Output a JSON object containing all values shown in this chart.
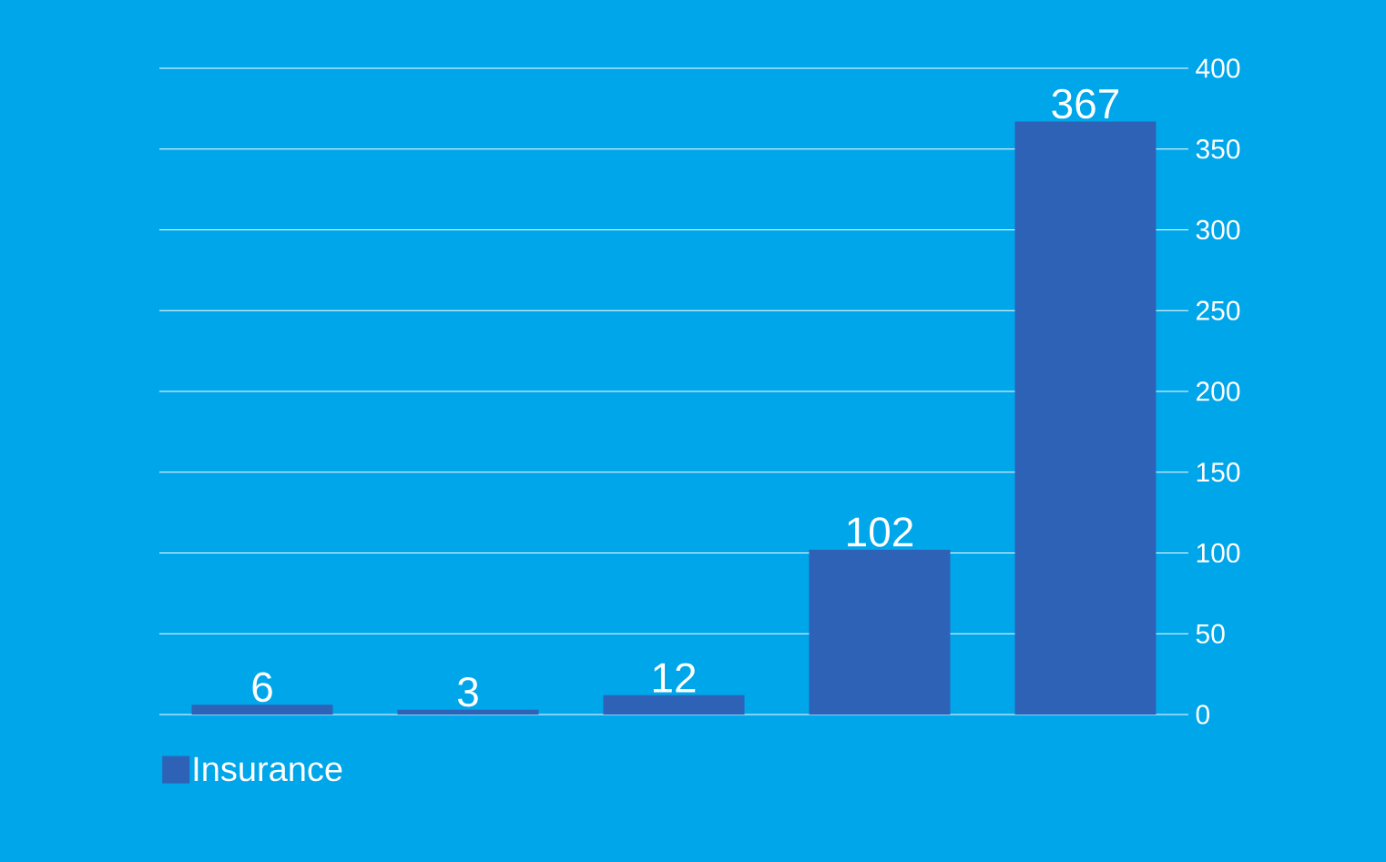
{
  "chart_data": {
    "type": "bar",
    "categories": [
      null,
      null,
      null,
      null,
      null
    ],
    "series": [
      {
        "name": "Insurance",
        "color": "#2e62b6",
        "values": [
          6,
          3,
          12,
          102,
          367
        ]
      }
    ],
    "ylim": [
      0,
      400
    ],
    "yticks": [
      0,
      50,
      100,
      150,
      200,
      250,
      300,
      350,
      400
    ],
    "grid": "y",
    "legend": "bottom left",
    "data_labels": true
  }
}
